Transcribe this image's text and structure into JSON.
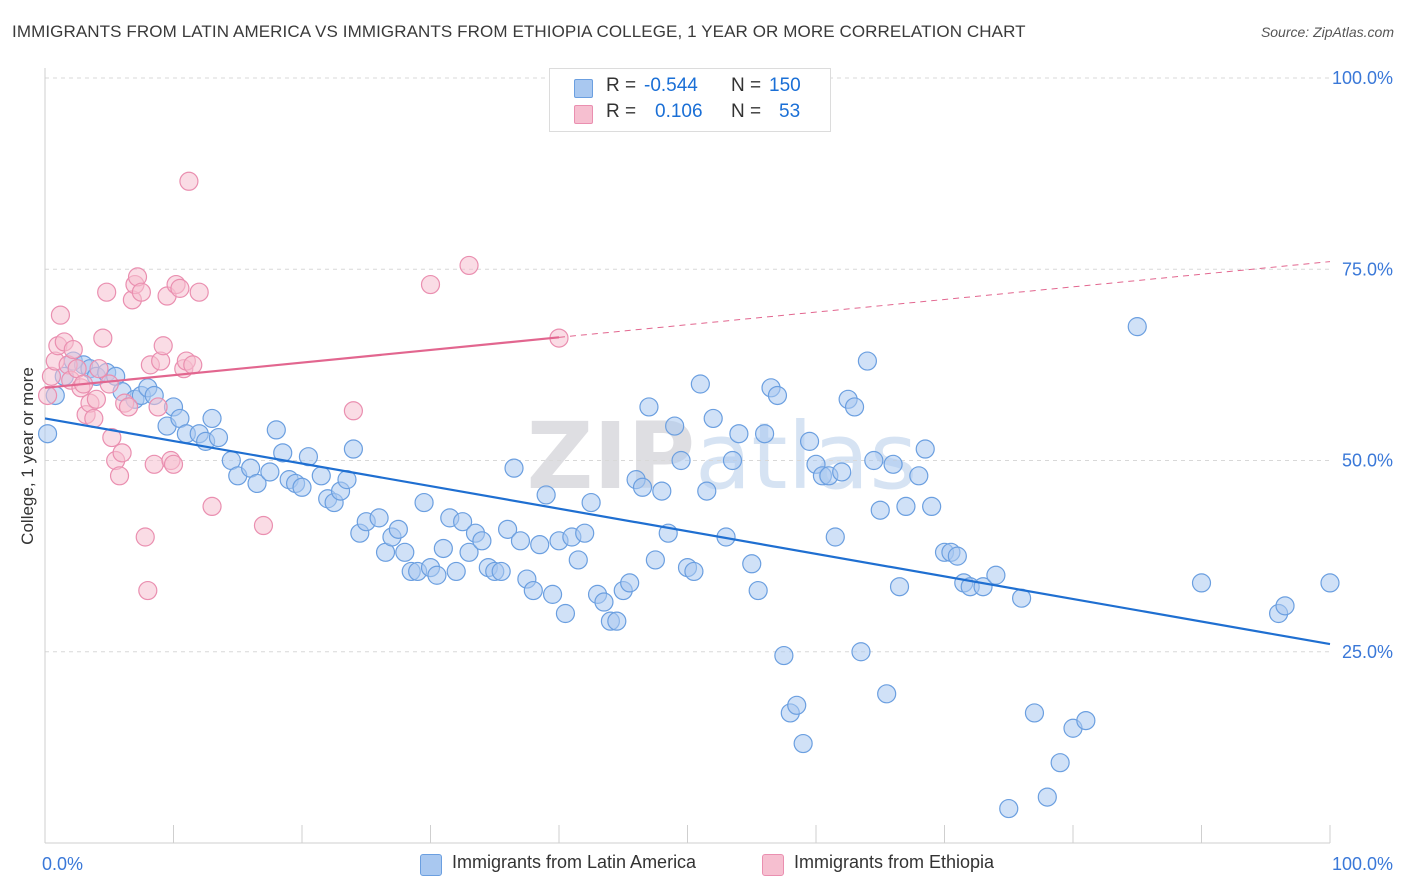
{
  "title": "IMMIGRANTS FROM LATIN AMERICA VS IMMIGRANTS FROM ETHIOPIA COLLEGE, 1 YEAR OR MORE CORRELATION CHART",
  "source": "Source: ZipAtlas.com",
  "watermark": "ZIPatlas",
  "legend": {
    "rows": [
      {
        "r_label": "R =",
        "r_value": "-0.544",
        "n_label": "N =",
        "n_value": "150"
      },
      {
        "r_label": "R =",
        "r_value": "0.106",
        "n_label": "N =",
        "n_value": "53"
      }
    ]
  },
  "colors": {
    "blue_fill": "#a9c8f0",
    "blue_stroke": "#6b9fe0",
    "blue_line": "#1f6fd1",
    "pink_fill": "#f6bfd0",
    "pink_stroke": "#ea8fb0",
    "pink_line": "#e2668f",
    "axis_text": "#3a78d8",
    "grid": "#d8d8d8"
  },
  "chart_data": {
    "type": "scatter",
    "title": "IMMIGRANTS FROM LATIN AMERICA VS IMMIGRANTS FROM ETHIOPIA COLLEGE, 1 YEAR OR MORE CORRELATION CHART",
    "ylabel": "College, 1 year or more",
    "xlabel": "",
    "xlim": [
      0,
      100
    ],
    "ylim": [
      0,
      100
    ],
    "x_tick_labels": [
      "0.0%",
      "100.0%"
    ],
    "y_tick_labels": [
      "25.0%",
      "50.0%",
      "75.0%",
      "100.0%"
    ],
    "y_ticks": [
      25,
      50,
      75,
      100
    ],
    "grid": true,
    "legend_position": "bottom",
    "series": [
      {
        "name": "Immigrants from Latin America",
        "color": "#a9c8f0",
        "trend": {
          "x": [
            0,
            100
          ],
          "y": [
            55.5,
            26.0
          ],
          "dashed_from": null
        },
        "points": [
          [
            0.2,
            53.5
          ],
          [
            0.8,
            58.5
          ],
          [
            1.5,
            61
          ],
          [
            2.2,
            63
          ],
          [
            3,
            62.5
          ],
          [
            3.5,
            62
          ],
          [
            4,
            61
          ],
          [
            4.8,
            61.5
          ],
          [
            5.5,
            61
          ],
          [
            6,
            59
          ],
          [
            7,
            58
          ],
          [
            7.5,
            58.5
          ],
          [
            8,
            59.5
          ],
          [
            8.5,
            58.5
          ],
          [
            9.5,
            54.5
          ],
          [
            10,
            57
          ],
          [
            10.5,
            55.5
          ],
          [
            11,
            53.5
          ],
          [
            12,
            53.5
          ],
          [
            12.5,
            52.5
          ],
          [
            13,
            55.5
          ],
          [
            13.5,
            53
          ],
          [
            14.5,
            50
          ],
          [
            15,
            48
          ],
          [
            16,
            49
          ],
          [
            16.5,
            47
          ],
          [
            17.5,
            48.5
          ],
          [
            18,
            54
          ],
          [
            18.5,
            51
          ],
          [
            19,
            47.5
          ],
          [
            19.5,
            47
          ],
          [
            20,
            46.5
          ],
          [
            20.5,
            50.5
          ],
          [
            21.5,
            48
          ],
          [
            22,
            45
          ],
          [
            22.5,
            44.5
          ],
          [
            23,
            46
          ],
          [
            23.5,
            47.5
          ],
          [
            24,
            51.5
          ],
          [
            24.5,
            40.5
          ],
          [
            25,
            42
          ],
          [
            26,
            42.5
          ],
          [
            26.5,
            38
          ],
          [
            27,
            40
          ],
          [
            27.5,
            41
          ],
          [
            28,
            38
          ],
          [
            28.5,
            35.5
          ],
          [
            29,
            35.5
          ],
          [
            29.5,
            44.5
          ],
          [
            30,
            36
          ],
          [
            30.5,
            35
          ],
          [
            31,
            38.5
          ],
          [
            31.5,
            42.5
          ],
          [
            32,
            35.5
          ],
          [
            32.5,
            42
          ],
          [
            33,
            38
          ],
          [
            33.5,
            40.5
          ],
          [
            34,
            39.5
          ],
          [
            34.5,
            36
          ],
          [
            35,
            35.5
          ],
          [
            35.5,
            35.5
          ],
          [
            36,
            41
          ],
          [
            36.5,
            49
          ],
          [
            37,
            39.5
          ],
          [
            37.5,
            34.5
          ],
          [
            38,
            33
          ],
          [
            38.5,
            39
          ],
          [
            39,
            45.5
          ],
          [
            39.5,
            32.5
          ],
          [
            40,
            39.5
          ],
          [
            40.5,
            30
          ],
          [
            41,
            40
          ],
          [
            41.5,
            37
          ],
          [
            42,
            40.5
          ],
          [
            42.5,
            44.5
          ],
          [
            43,
            32.5
          ],
          [
            43.5,
            31.5
          ],
          [
            44,
            29
          ],
          [
            44.5,
            29
          ],
          [
            45,
            33
          ],
          [
            45.5,
            34
          ],
          [
            46,
            47.5
          ],
          [
            46.5,
            46.5
          ],
          [
            47,
            57
          ],
          [
            47.5,
            37
          ],
          [
            48,
            46
          ],
          [
            48.5,
            40.5
          ],
          [
            49,
            54.5
          ],
          [
            49.5,
            50
          ],
          [
            50,
            36
          ],
          [
            50.5,
            35.5
          ],
          [
            51,
            60
          ],
          [
            51.5,
            46
          ],
          [
            52,
            55.5
          ],
          [
            53,
            40
          ],
          [
            53.5,
            50
          ],
          [
            54,
            53.5
          ],
          [
            55,
            36.5
          ],
          [
            55.5,
            33
          ],
          [
            56,
            53.5
          ],
          [
            56.5,
            59.5
          ],
          [
            57,
            58.5
          ],
          [
            57.5,
            24.5
          ],
          [
            58,
            17
          ],
          [
            58.5,
            18
          ],
          [
            59,
            13
          ],
          [
            59.5,
            52.5
          ],
          [
            60,
            49.5
          ],
          [
            60.5,
            48
          ],
          [
            61,
            48
          ],
          [
            61.5,
            40
          ],
          [
            62,
            48.5
          ],
          [
            62.5,
            58
          ],
          [
            63,
            57
          ],
          [
            63.5,
            25
          ],
          [
            64,
            63
          ],
          [
            64.5,
            50
          ],
          [
            65,
            43.5
          ],
          [
            65.5,
            19.5
          ],
          [
            66,
            49.5
          ],
          [
            66.5,
            33.5
          ],
          [
            67,
            44
          ],
          [
            68,
            48
          ],
          [
            68.5,
            51.5
          ],
          [
            69,
            44
          ],
          [
            70,
            38
          ],
          [
            70.5,
            38
          ],
          [
            71,
            37.5
          ],
          [
            71.5,
            34
          ],
          [
            72,
            33.5
          ],
          [
            73,
            33.5
          ],
          [
            74,
            35
          ],
          [
            75,
            4.5
          ],
          [
            76,
            32
          ],
          [
            77,
            17
          ],
          [
            78,
            6
          ],
          [
            79,
            10.5
          ],
          [
            80,
            15
          ],
          [
            81,
            16
          ],
          [
            85,
            67.5
          ],
          [
            90,
            34
          ],
          [
            96,
            30
          ],
          [
            96.5,
            31
          ],
          [
            100,
            34
          ]
        ]
      },
      {
        "name": "Immigrants from Ethiopia",
        "color": "#f6bfd0",
        "trend": {
          "x": [
            0,
            100
          ],
          "y": [
            59.5,
            76.0
          ],
          "dashed_from": 40
        },
        "points": [
          [
            0.2,
            58.5
          ],
          [
            0.5,
            61
          ],
          [
            0.8,
            63
          ],
          [
            1,
            65
          ],
          [
            1.2,
            69
          ],
          [
            1.5,
            65.5
          ],
          [
            1.8,
            62.5
          ],
          [
            2,
            60.5
          ],
          [
            2.2,
            64.5
          ],
          [
            2.5,
            62
          ],
          [
            2.8,
            59.5
          ],
          [
            3,
            60
          ],
          [
            3.2,
            56
          ],
          [
            3.5,
            57.5
          ],
          [
            3.8,
            55.5
          ],
          [
            4,
            58
          ],
          [
            4.2,
            62
          ],
          [
            4.5,
            66
          ],
          [
            4.8,
            72
          ],
          [
            5,
            60
          ],
          [
            5.2,
            53
          ],
          [
            5.5,
            50
          ],
          [
            5.8,
            48
          ],
          [
            6,
            51
          ],
          [
            6.2,
            57.5
          ],
          [
            6.5,
            57
          ],
          [
            6.8,
            71
          ],
          [
            7,
            73
          ],
          [
            7.2,
            74
          ],
          [
            7.5,
            72
          ],
          [
            7.8,
            40
          ],
          [
            8,
            33
          ],
          [
            8.2,
            62.5
          ],
          [
            8.5,
            49.5
          ],
          [
            8.8,
            57
          ],
          [
            9,
            63
          ],
          [
            9.2,
            65
          ],
          [
            9.5,
            71.5
          ],
          [
            9.8,
            50
          ],
          [
            10,
            49.5
          ],
          [
            10.2,
            73
          ],
          [
            10.5,
            72.5
          ],
          [
            10.8,
            62
          ],
          [
            11,
            63
          ],
          [
            11.2,
            86.5
          ],
          [
            11.5,
            62.5
          ],
          [
            12,
            72
          ],
          [
            13,
            44
          ],
          [
            17,
            41.5
          ],
          [
            24,
            56.5
          ],
          [
            30,
            73
          ],
          [
            33,
            75.5
          ],
          [
            40,
            66
          ]
        ]
      }
    ]
  },
  "bottom_legend": [
    {
      "label": "Immigrants from Latin America"
    },
    {
      "label": "Immigrants from Ethiopia"
    }
  ]
}
